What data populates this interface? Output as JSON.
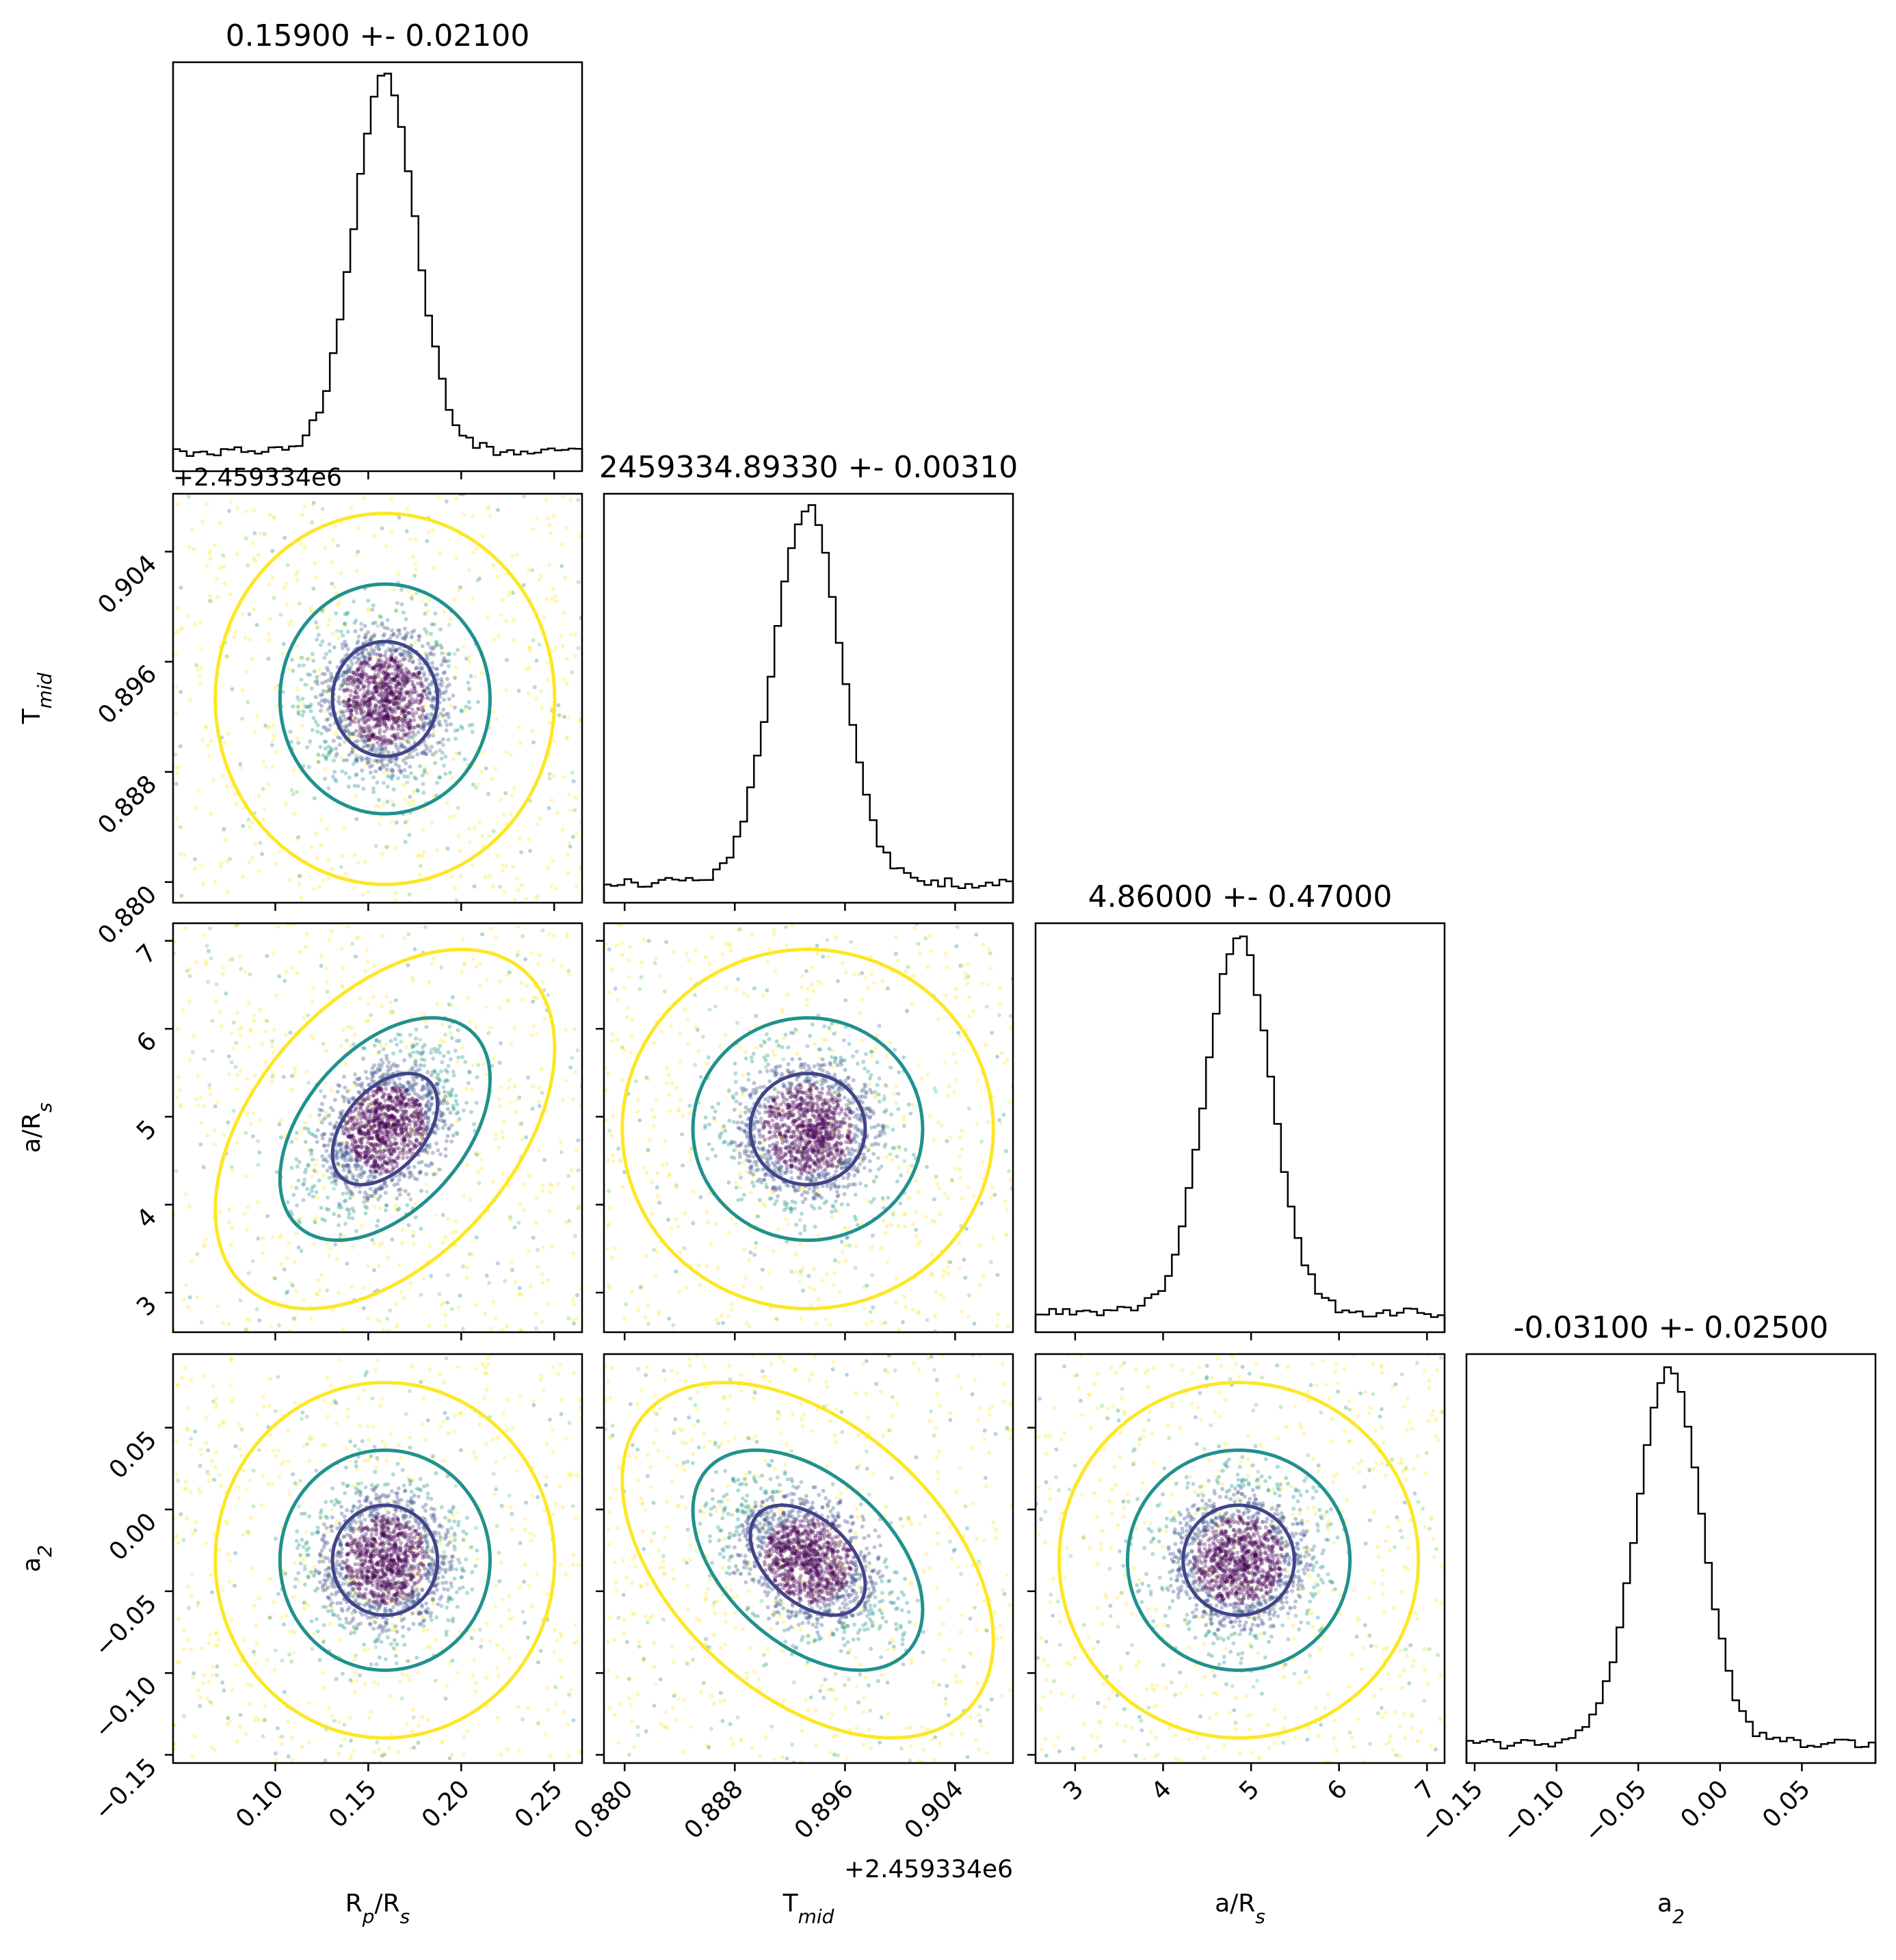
{
  "chart_data": {
    "type": "corner",
    "parameters": [
      {
        "label": "R",
        "sub": "p",
        "label2": "/R",
        "sub2": "s",
        "range": [
          0.045,
          0.265
        ],
        "ticks": [
          0.1,
          0.15,
          0.2,
          0.25
        ],
        "tick_labels": [
          "0.10",
          "0.15",
          "0.20",
          "0.25"
        ],
        "median": 0.159,
        "sigma": 0.021
      },
      {
        "label": "T",
        "sub": "mid",
        "label2": "",
        "sub2": "",
        "range": [
          0.8785,
          0.9082
        ],
        "ticks": [
          0.88,
          0.888,
          0.896,
          0.904
        ],
        "tick_labels": [
          "0.880",
          "0.888",
          "0.896",
          "0.904"
        ],
        "offset": "+2.459334e6",
        "median": 0.8933,
        "sigma": 0.0031
      },
      {
        "label": "a/R",
        "sub": "s",
        "label2": "",
        "sub2": "",
        "range": [
          2.55,
          7.2
        ],
        "ticks": [
          3,
          4,
          5,
          6,
          7
        ],
        "tick_labels": [
          "3",
          "4",
          "5",
          "6",
          "7"
        ],
        "median": 4.86,
        "sigma": 0.47
      },
      {
        "label": "a",
        "sub": "2",
        "label2": "",
        "sub2": "",
        "range": [
          -0.155,
          0.095
        ],
        "ticks": [
          -0.15,
          -0.1,
          -0.05,
          0.0,
          0.05
        ],
        "tick_labels": [
          "−0.15",
          "−0.10",
          "−0.05",
          "0.00",
          "0.05"
        ],
        "median": -0.031,
        "sigma": 0.025
      }
    ],
    "titles": [
      "0.15900 +- 0.02100",
      "2459334.89330 +- 0.00310",
      "4.86000 +- 0.47000",
      "-0.03100 +- 0.02500"
    ],
    "offset_text": "+2.459334e6",
    "contour_colors": [
      "#440154",
      "#21918c",
      "#fde725"
    ],
    "hist_color": "#000000",
    "grid": false
  }
}
